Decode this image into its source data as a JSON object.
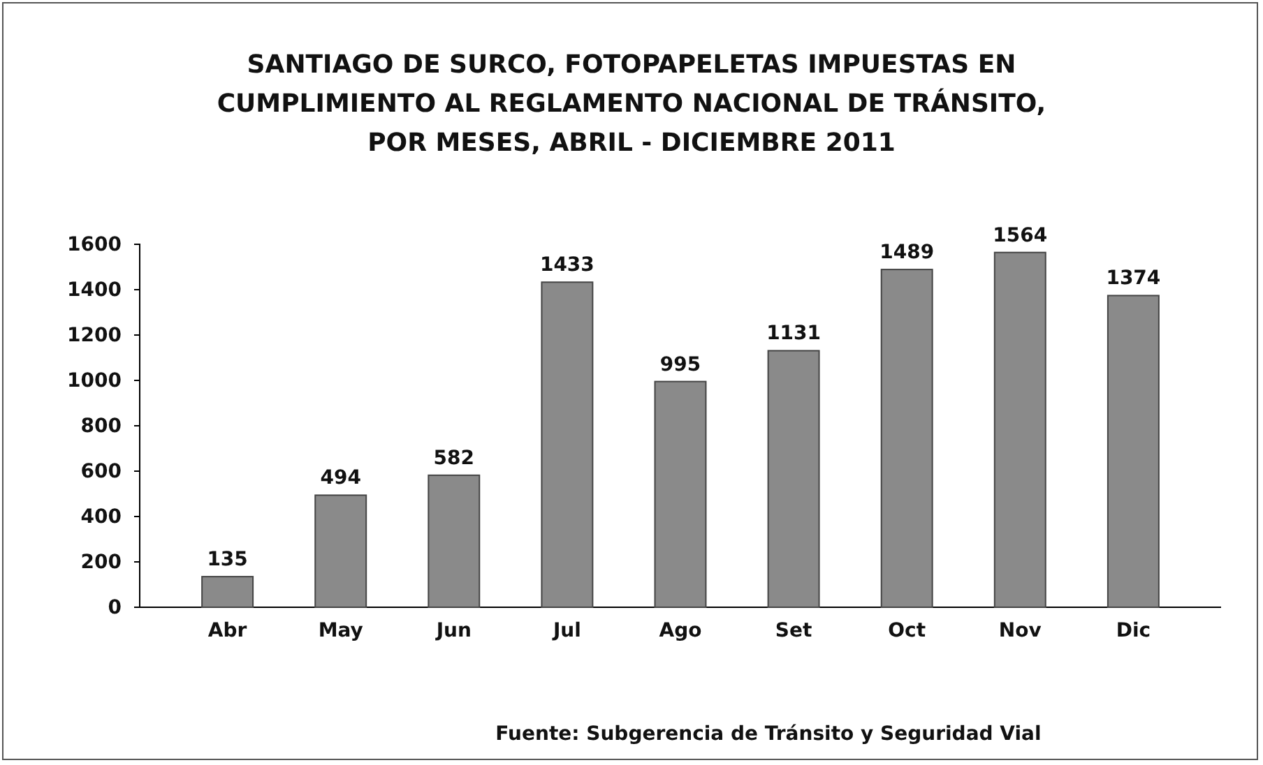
{
  "chart_data": {
    "type": "bar",
    "title": "SANTIAGO DE SURCO,  FOTOPAPELETAS IMPUESTAS EN\nCUMPLIMIENTO AL REGLAMENTO NACIONAL DE TRÁNSITO,\nPOR MESES, ABRIL - DICIEMBRE  2011",
    "categories": [
      "Abr",
      "May",
      "Jun",
      "Jul",
      "Ago",
      "Set",
      "Oct",
      "Nov",
      "Dic"
    ],
    "values": [
      135,
      494,
      582,
      1433,
      995,
      1131,
      1489,
      1564,
      1374
    ],
    "color": "#8a8a8a",
    "ylim": [
      0,
      1600
    ],
    "yticks": [
      0,
      200,
      400,
      600,
      800,
      1000,
      1200,
      1400,
      1600
    ],
    "data_labels": true,
    "annotations": [
      "Fuente: Subgerencia de Tránsito y Seguridad Vial"
    ]
  }
}
